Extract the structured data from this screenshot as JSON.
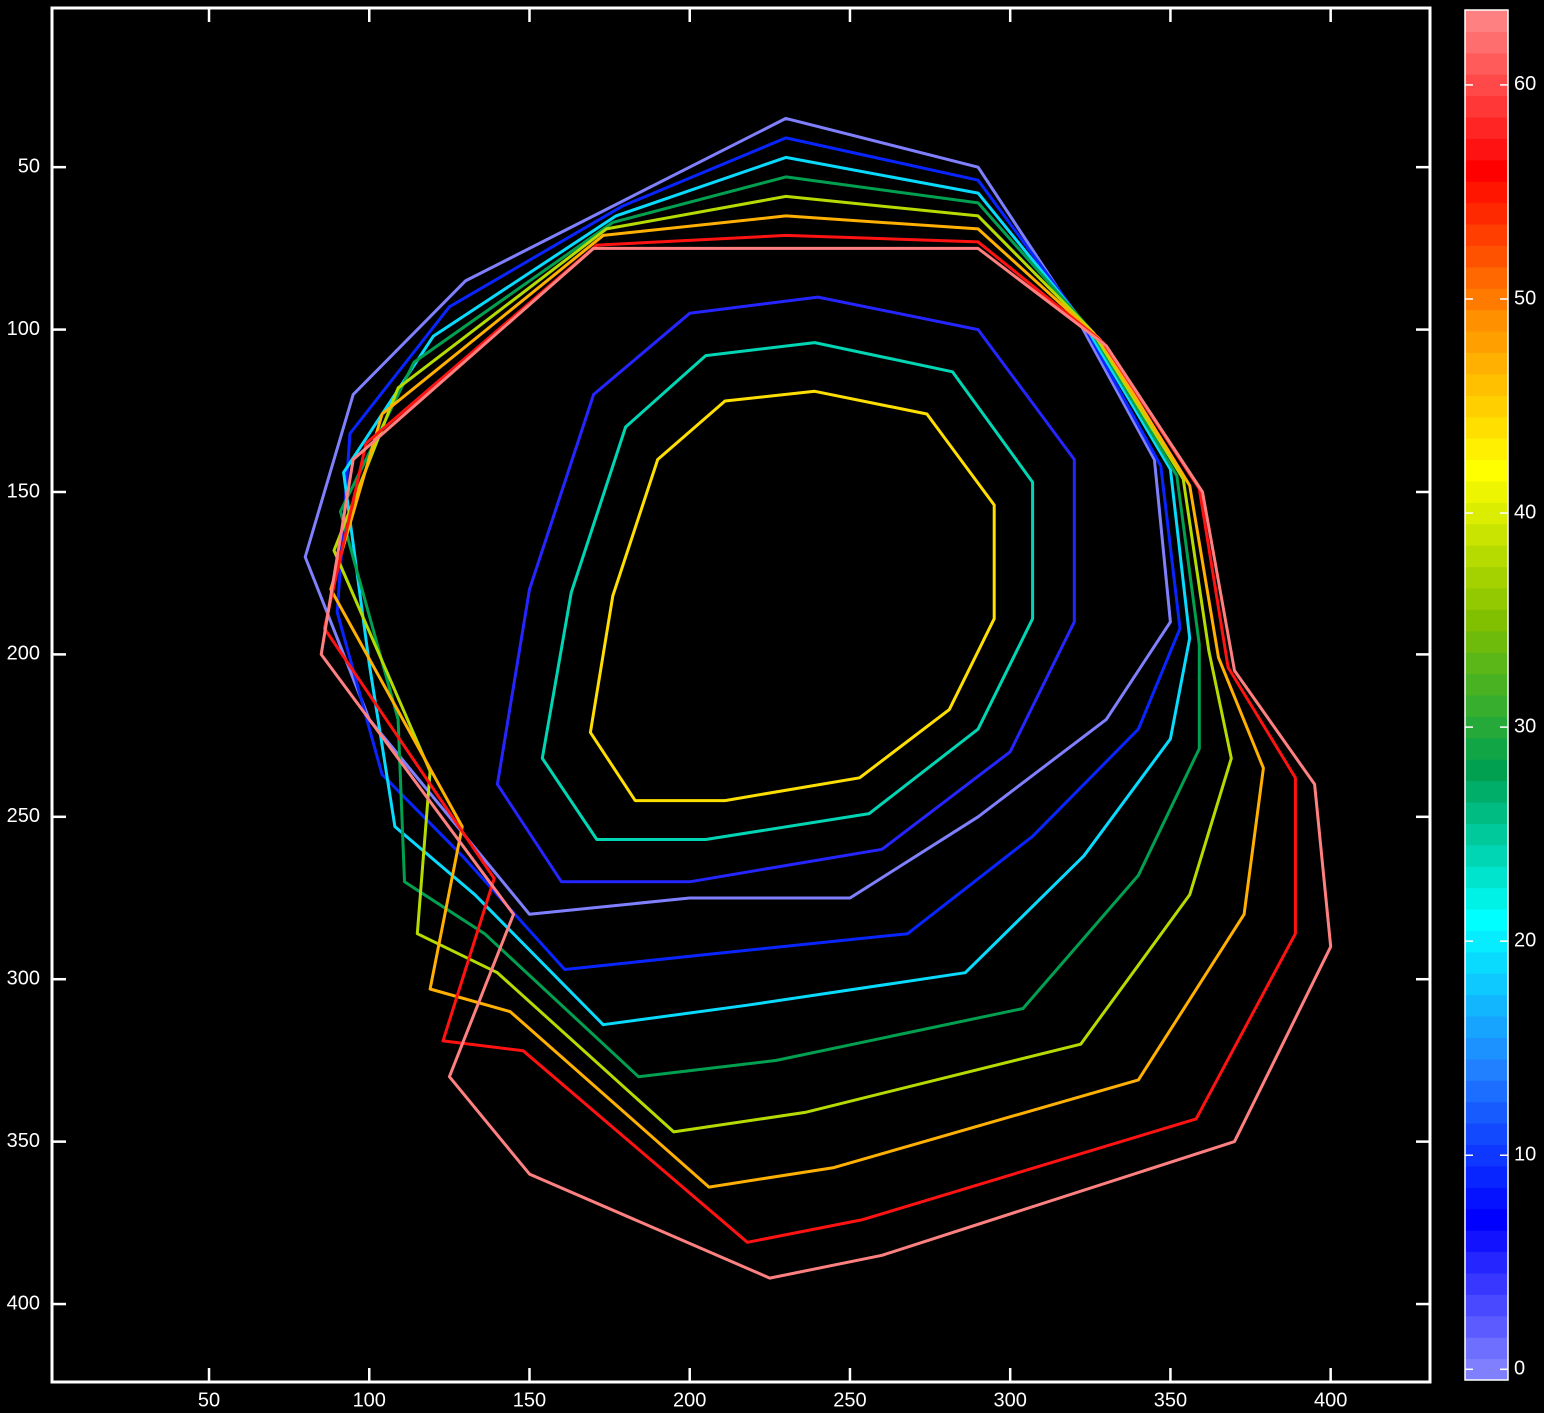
{
  "chart_data": {
    "type": "contour",
    "xlim": [
      1,
      431
    ],
    "ylim": [
      1,
      424
    ],
    "y_reversed": true,
    "xticks": [
      50,
      100,
      150,
      200,
      250,
      300,
      350,
      400
    ],
    "yticks": [
      50,
      100,
      150,
      200,
      250,
      300,
      350,
      400
    ],
    "clim": [
      -0.5,
      63.5
    ],
    "cticks": [
      0,
      10,
      20,
      30,
      40,
      50,
      60
    ],
    "colormap": [
      "#8080ff",
      "#0000ff",
      "#2080ff",
      "#00ffff",
      "#00a050",
      "#80c000",
      "#ffff00",
      "#ff9000",
      "#ff0000",
      "#ff8080"
    ],
    "background": "#000000",
    "contours": [
      {
        "level": 0,
        "x": [
          230,
          290,
          320,
          345,
          350,
          330,
          290,
          250,
          200,
          150,
          125,
          100,
          80,
          95,
          130,
          180
        ],
        "y": [
          35,
          50,
          95,
          140,
          190,
          220,
          250,
          275,
          275,
          280,
          250,
          220,
          170,
          120,
          85,
          60
        ]
      },
      {
        "level": 9,
        "x": [
          230,
          290,
          322,
          347,
          353,
          340,
          307,
          268,
          209,
          161,
          129,
          104,
          90,
          94,
          125,
          179
        ],
        "y": [
          41,
          54,
          97,
          142,
          192,
          223,
          256,
          286,
          292,
          297,
          262,
          237,
          187,
          132,
          93,
          62
        ]
      },
      {
        "level": 19,
        "x": [
          230,
          290,
          323,
          350,
          356,
          350,
          323,
          286,
          218,
          173,
          133,
          108,
          100,
          92,
          120,
          177
        ],
        "y": [
          47,
          58,
          98,
          143,
          195,
          226,
          262,
          298,
          308,
          314,
          274,
          253,
          203,
          144,
          102,
          65
        ]
      },
      {
        "level": 28,
        "x": [
          230,
          290,
          325,
          352,
          359,
          359,
          340,
          304,
          227,
          184,
          136,
          111,
          109,
          91,
          114,
          176
        ],
        "y": [
          53,
          61,
          100,
          145,
          197,
          229,
          268,
          309,
          325,
          330,
          286,
          270,
          220,
          156,
          110,
          67
        ]
      },
      {
        "level": 38,
        "x": [
          230,
          290,
          326,
          354,
          362,
          369,
          356,
          322,
          236,
          195,
          140,
          115,
          119,
          89,
          109,
          174
        ],
        "y": [
          59,
          65,
          101,
          146,
          199,
          232,
          274,
          320,
          341,
          347,
          298,
          286,
          236,
          168,
          118,
          69
        ]
      },
      {
        "level": 47,
        "x": [
          230,
          290,
          328,
          356,
          365,
          379,
          373,
          340,
          245,
          206,
          144,
          119,
          129,
          88,
          104,
          173
        ],
        "y": [
          65,
          69,
          103,
          148,
          201,
          235,
          280,
          331,
          358,
          364,
          310,
          303,
          253,
          180,
          126,
          71
        ]
      },
      {
        "level": 57,
        "x": [
          230,
          290,
          329,
          359,
          368,
          389,
          389,
          358,
          254,
          218,
          148,
          123,
          139,
          86,
          99,
          171
        ],
        "y": [
          71,
          73,
          104,
          149,
          204,
          238,
          286,
          343,
          374,
          381,
          322,
          319,
          269,
          192,
          135,
          74
        ]
      },
      {
        "level": 63,
        "x": [
          230,
          290,
          330,
          360,
          370,
          395,
          400,
          370,
          260,
          225,
          150,
          125,
          145,
          85,
          95,
          170
        ],
        "y": [
          75,
          75,
          105,
          150,
          205,
          240,
          290,
          350,
          385,
          392,
          360,
          330,
          280,
          200,
          140,
          75
        ]
      },
      {
        "level": 5,
        "x": [
          240,
          290,
          320,
          320,
          300,
          260,
          200,
          160,
          140,
          150,
          170,
          200
        ],
        "y": [
          90,
          100,
          140,
          190,
          230,
          260,
          270,
          270,
          240,
          180,
          120,
          95
        ]
      },
      {
        "level": 24,
        "x": [
          239,
          282,
          307,
          307,
          290,
          256,
          205,
          171,
          154,
          163,
          180,
          205
        ],
        "y": [
          104,
          113,
          147,
          189,
          223,
          249,
          257,
          257,
          232,
          181,
          130,
          108
        ]
      },
      {
        "level": 44,
        "x": [
          239,
          274,
          295,
          295,
          281,
          253,
          211,
          183,
          169,
          176,
          190,
          211
        ],
        "y": [
          119,
          126,
          154,
          189,
          217,
          238,
          245,
          245,
          224,
          182,
          140,
          122
        ]
      }
    ]
  }
}
